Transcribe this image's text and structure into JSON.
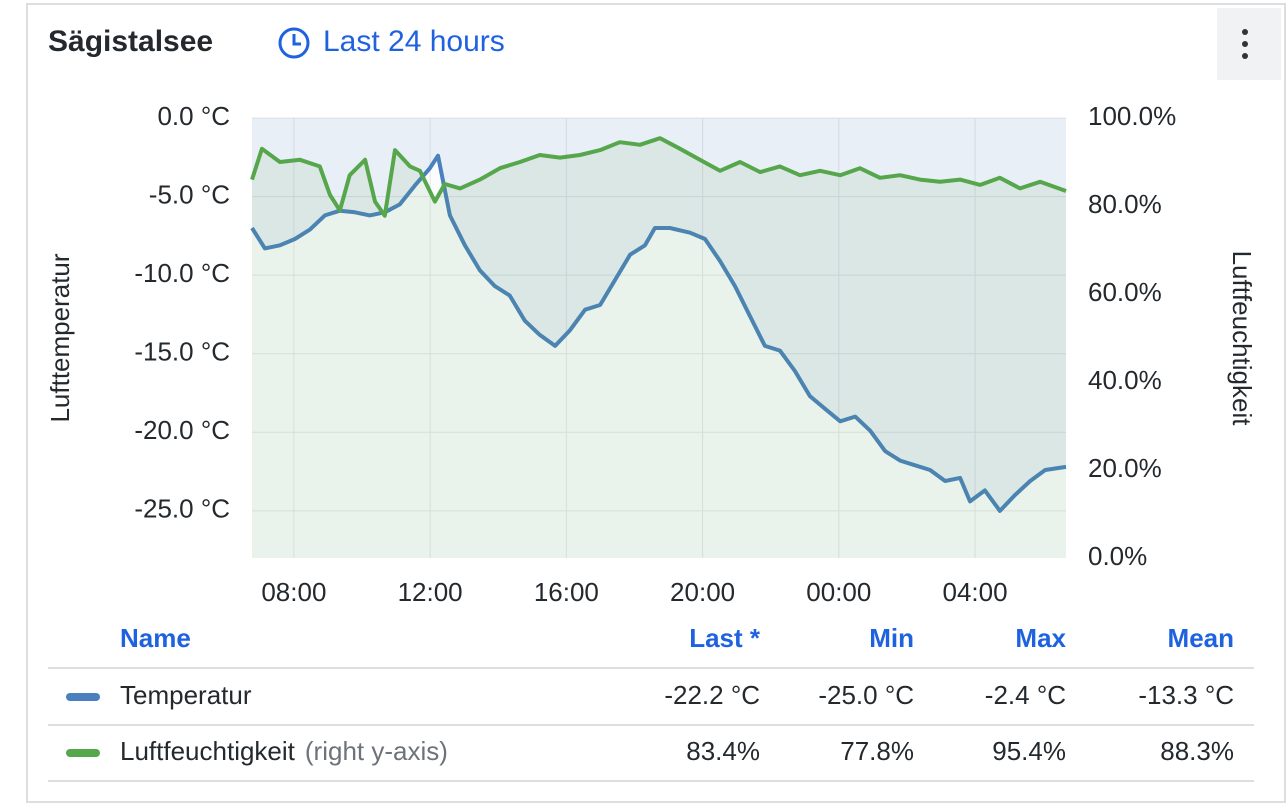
{
  "panel": {
    "title": "Sägistalsee",
    "time_range": "Last 24 hours"
  },
  "chart_data": {
    "type": "line",
    "ylabel": "Lufttemperatur",
    "y2label": "Luftfeuchtigkeit",
    "xlim": [
      6.77,
      30.67
    ],
    "xticks": [
      {
        "value": 8,
        "label": "08:00"
      },
      {
        "value": 12,
        "label": "12:00"
      },
      {
        "value": 16,
        "label": "16:00"
      },
      {
        "value": 20,
        "label": "20:00"
      },
      {
        "value": 24,
        "label": "00:00"
      },
      {
        "value": 28,
        "label": "04:00"
      }
    ],
    "ylim": [
      -28,
      0
    ],
    "yticks": [
      {
        "value": 0,
        "label": "0.0 °C"
      },
      {
        "value": -5,
        "label": "-5.0 °C"
      },
      {
        "value": -10,
        "label": "-10.0 °C"
      },
      {
        "value": -15,
        "label": "-15.0 °C"
      },
      {
        "value": -20,
        "label": "-20.0 °C"
      },
      {
        "value": -25,
        "label": "-25.0 °C"
      }
    ],
    "y2lim": [
      0,
      100
    ],
    "y2ticks": [
      {
        "value": 100,
        "label": "100.0%"
      },
      {
        "value": 80,
        "label": "80.0%"
      },
      {
        "value": 60,
        "label": "60.0%"
      },
      {
        "value": 40,
        "label": "40.0%"
      },
      {
        "value": 20,
        "label": "20.0%"
      },
      {
        "value": 0,
        "label": "0.0%"
      }
    ],
    "grid": true,
    "series": [
      {
        "name": "Temperatur",
        "color": "#4a80bd",
        "x": [
          6.77,
          7.15,
          7.59,
          8.03,
          8.47,
          8.91,
          9.35,
          9.79,
          10.23,
          10.67,
          11.11,
          11.55,
          11.99,
          12.23,
          12.58,
          13.02,
          13.46,
          13.9,
          14.34,
          14.78,
          15.22,
          15.67,
          16.11,
          16.55,
          16.99,
          17.43,
          17.87,
          18.31,
          18.6,
          19.04,
          19.63,
          20.07,
          20.51,
          20.95,
          21.39,
          21.83,
          22.27,
          22.71,
          23.15,
          23.59,
          24.04,
          24.48,
          24.92,
          25.36,
          25.8,
          26.24,
          26.68,
          27.12,
          27.56,
          27.85,
          28.29,
          28.73,
          29.17,
          29.62,
          30.06,
          30.67
        ],
        "values": [
          -7.0,
          -8.3,
          -8.1,
          -7.7,
          -7.1,
          -6.2,
          -5.9,
          -6.0,
          -6.2,
          -6.0,
          -5.5,
          -4.3,
          -3.2,
          -2.4,
          -6.2,
          -8.1,
          -9.7,
          -10.7,
          -11.3,
          -12.9,
          -13.8,
          -14.5,
          -13.5,
          -12.2,
          -11.9,
          -10.3,
          -8.7,
          -8.1,
          -7.0,
          -7.0,
          -7.3,
          -7.7,
          -9.1,
          -10.7,
          -12.6,
          -14.5,
          -14.8,
          -16.1,
          -17.7,
          -18.5,
          -19.3,
          -19.0,
          -19.9,
          -21.2,
          -21.8,
          -22.1,
          -22.4,
          -23.1,
          -22.9,
          -24.4,
          -23.7,
          -25.0,
          -24.0,
          -23.1,
          -22.4,
          -22.2
        ]
      },
      {
        "name": "Luftfeuchtigkeit",
        "color": "#56a64b",
        "axis": "y2",
        "x": [
          6.77,
          7.06,
          7.59,
          8.18,
          8.76,
          9.06,
          9.35,
          9.64,
          10.09,
          10.38,
          10.67,
          10.97,
          11.41,
          11.7,
          12.14,
          12.43,
          12.88,
          13.46,
          14.05,
          14.64,
          15.22,
          15.81,
          16.4,
          16.99,
          17.57,
          18.16,
          18.75,
          19.34,
          19.92,
          20.51,
          21.1,
          21.69,
          22.27,
          22.86,
          23.45,
          24.04,
          24.62,
          25.21,
          25.8,
          26.38,
          26.97,
          27.56,
          28.15,
          28.73,
          29.32,
          29.91,
          30.67
        ],
        "values": [
          86,
          93,
          90,
          90.5,
          89,
          82.5,
          79,
          87,
          90.5,
          81,
          77.8,
          92.7,
          89,
          88,
          81,
          85,
          84,
          86,
          88.6,
          90,
          91.6,
          91,
          91.6,
          92.7,
          94.5,
          93.9,
          95.4,
          93,
          90.5,
          88,
          90,
          87.7,
          89,
          87,
          88,
          87,
          88.6,
          86.4,
          87,
          86,
          85.5,
          86,
          84.8,
          86.4,
          84,
          85.5,
          83.4
        ]
      }
    ]
  },
  "legend": {
    "columns": [
      "Name",
      "Last *",
      "Min",
      "Max",
      "Mean"
    ],
    "axis_note": "(right y-axis)",
    "rows": [
      [
        "-22.2 °C",
        "-25.0 °C",
        "-2.4 °C",
        "-13.3 °C"
      ],
      [
        "83.4%",
        "77.8%",
        "95.4%",
        "88.3%"
      ]
    ]
  }
}
